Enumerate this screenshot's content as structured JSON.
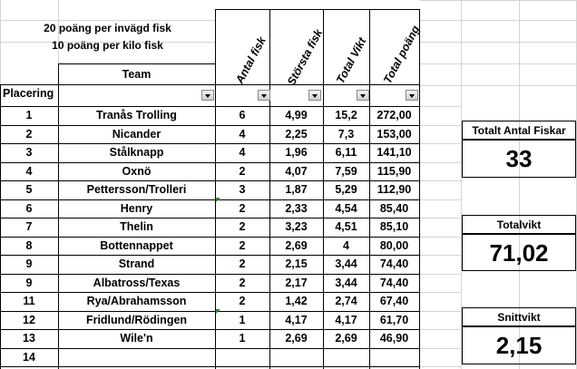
{
  "notes": {
    "line1": "20 poäng per invägd fisk",
    "line2": "10 poäng per kilo fisk"
  },
  "headers": {
    "team": "Team",
    "placering": "Placering",
    "antal": "Antal fisk",
    "storsta": "Största fisk",
    "total_vikt": "Total Vikt",
    "total_poang": "Total poäng"
  },
  "rows": [
    {
      "placering": "1",
      "team": "Tranås Trolling",
      "antal": "6",
      "storsta": "4,99",
      "vikt": "15,2",
      "poang": "272,00"
    },
    {
      "placering": "2",
      "team": "Nicander",
      "antal": "4",
      "storsta": "2,25",
      "vikt": "7,3",
      "poang": "153,00"
    },
    {
      "placering": "3",
      "team": "Stålknapp",
      "antal": "4",
      "storsta": "1,96",
      "vikt": "6,11",
      "poang": "141,10"
    },
    {
      "placering": "4",
      "team": "Oxnö",
      "antal": "2",
      "storsta": "4,07",
      "vikt": "7,59",
      "poang": "115,90"
    },
    {
      "placering": "5",
      "team": "Pettersson/Trolleri",
      "antal": "3",
      "storsta": "1,87",
      "vikt": "5,29",
      "poang": "112,90"
    },
    {
      "placering": "6",
      "team": "Henry",
      "antal": "2",
      "storsta": "2,33",
      "vikt": "4,54",
      "poang": "85,40"
    },
    {
      "placering": "7",
      "team": "Thelin",
      "antal": "2",
      "storsta": "3,23",
      "vikt": "4,51",
      "poang": "85,10"
    },
    {
      "placering": "8",
      "team": "Bottennappet",
      "antal": "2",
      "storsta": "2,69",
      "vikt": "4",
      "poang": "80,00"
    },
    {
      "placering": "9",
      "team": "Strand",
      "antal": "2",
      "storsta": "2,15",
      "vikt": "3,44",
      "poang": "74,40"
    },
    {
      "placering": "9",
      "team": "Albatross/Texas",
      "antal": "2",
      "storsta": "2,17",
      "vikt": "3,44",
      "poang": "74,40"
    },
    {
      "placering": "11",
      "team": "Rya/Abrahamsson",
      "antal": "2",
      "storsta": "1,42",
      "vikt": "2,74",
      "poang": "67,40"
    },
    {
      "placering": "12",
      "team": "Fridlund/Rödingen",
      "antal": "1",
      "storsta": "4,17",
      "vikt": "4,17",
      "poang": "61,70"
    },
    {
      "placering": "13",
      "team": "Wile'n",
      "antal": "1",
      "storsta": "2,69",
      "vikt": "2,69",
      "poang": "46,90"
    },
    {
      "placering": "14",
      "team": "",
      "antal": "",
      "storsta": "",
      "vikt": "",
      "poang": ""
    }
  ],
  "summary": {
    "antal_label": "Totalt Antal Fiskar",
    "antal_value": "33",
    "vikt_label": "Totalvikt",
    "vikt_value": "71,02",
    "snitt_label": "Snittvikt",
    "snitt_value": "2,15"
  },
  "colors": {
    "gridline": "#d4d4d4",
    "comment_marker": "#2e8b2e"
  }
}
